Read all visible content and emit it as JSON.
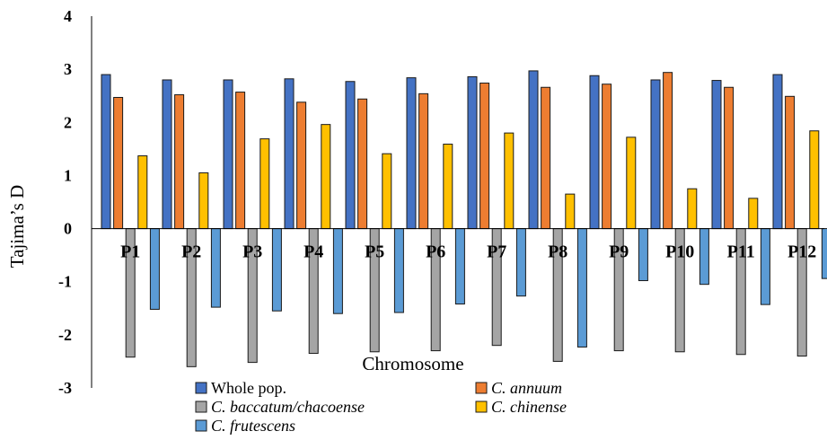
{
  "chart_data": {
    "type": "bar",
    "title": "",
    "xlabel": "Chromosome",
    "ylabel": "Tajima’s D",
    "ylim": [
      -3,
      4
    ],
    "yticks": [
      "-3",
      "-2",
      "-1",
      "0",
      "1",
      "2",
      "3",
      "4"
    ],
    "grid": false,
    "legend_position": "bottom",
    "categories": [
      "P1",
      "P2",
      "P3",
      "P4",
      "P5",
      "P6",
      "P7",
      "P8",
      "P9",
      "P10",
      "P11",
      "P12"
    ],
    "series": [
      {
        "name": "Whole pop.",
        "color": "#4472C4",
        "values": [
          2.9,
          2.8,
          2.8,
          2.82,
          2.77,
          2.84,
          2.86,
          2.97,
          2.88,
          2.8,
          2.79,
          2.9
        ]
      },
      {
        "name": "C. annuum",
        "color": "#ED7D31",
        "values": [
          2.47,
          2.52,
          2.57,
          2.38,
          2.44,
          2.54,
          2.74,
          2.66,
          2.72,
          2.94,
          2.66,
          2.49
        ]
      },
      {
        "name": "C. baccatum/chacoense",
        "color": "#A5A5A5",
        "values": [
          -2.42,
          -2.6,
          -2.52,
          -2.35,
          -2.32,
          -2.3,
          -2.2,
          -2.5,
          -2.3,
          -2.32,
          -2.37,
          -2.4
        ]
      },
      {
        "name": "C. chinense",
        "color": "#FFC000",
        "values": [
          1.37,
          1.05,
          1.69,
          1.96,
          1.41,
          1.59,
          1.8,
          0.65,
          1.72,
          0.75,
          0.57,
          1.84
        ]
      },
      {
        "name": "C. frutescens",
        "color": "#5B9BD5",
        "values": [
          -1.52,
          -1.48,
          -1.55,
          -1.6,
          -1.58,
          -1.42,
          -1.27,
          -2.23,
          -0.98,
          -1.05,
          -1.43,
          -0.94
        ]
      }
    ]
  }
}
